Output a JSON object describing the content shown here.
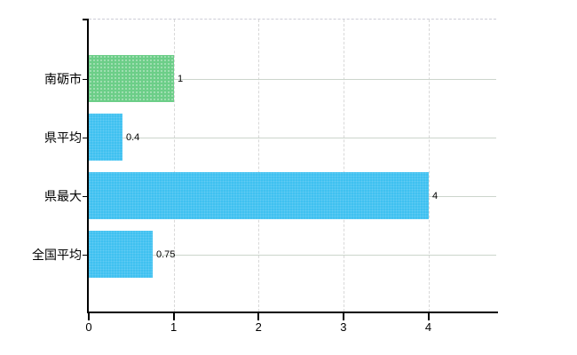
{
  "chart_data": {
    "type": "bar",
    "orientation": "horizontal",
    "title": "",
    "xlabel": "",
    "ylabel": "",
    "categories": [
      "南砺市",
      "県平均",
      "県最大",
      "全国平均"
    ],
    "values": [
      1,
      0.4,
      4,
      0.75
    ],
    "value_labels": [
      "1",
      "0.4",
      "4",
      "0.75"
    ],
    "bar_colors": [
      "#6cce88",
      "#3fc1f0",
      "#3fc1f0",
      "#3fc1f0"
    ],
    "x_tick_labels": [
      "0",
      "1",
      "2",
      "3",
      "4"
    ],
    "x_tick_values": [
      0,
      1,
      2,
      3,
      4
    ],
    "xlim": [
      0,
      4.8
    ],
    "grid": true,
    "legend": false,
    "background": "#ffffff"
  },
  "colors": {
    "highlight_bar": "#6cce88",
    "default_bar": "#3fc1f0",
    "axis": "#000000",
    "horizontal_gridline": "#ccd5cc",
    "vertical_gridline": "#d8d8d8",
    "top_border_dashed": "#ccccd6",
    "text": "#000000"
  }
}
